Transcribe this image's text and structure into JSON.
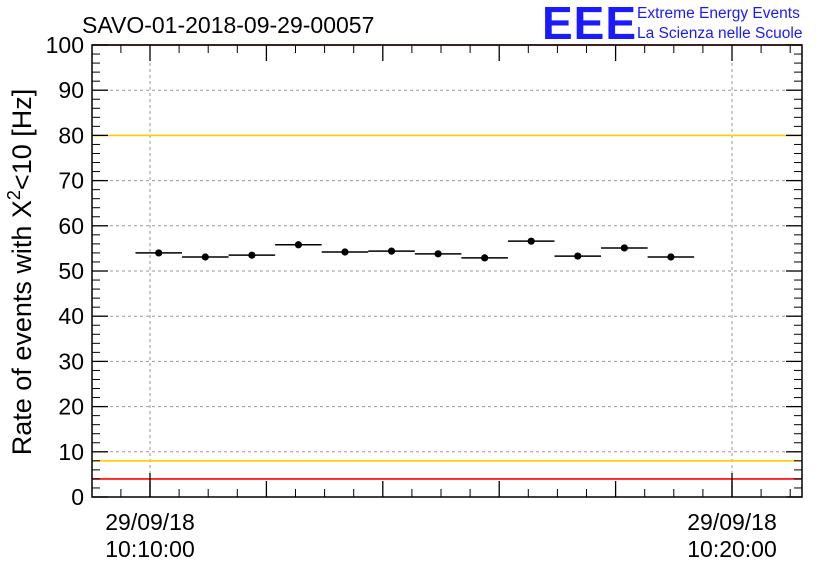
{
  "chart_data": {
    "type": "scatter",
    "title": "SAVO-01-2018-09-29-00057",
    "ylabel_prefix": "Rate of events with X",
    "ylabel_sup": "2",
    "ylabel_suffix": "<10 [Hz]",
    "xlabel": "",
    "ylim": [
      0,
      100
    ],
    "yticks": [
      0,
      10,
      20,
      30,
      40,
      50,
      60,
      70,
      80,
      90,
      100
    ],
    "x_range_seconds": [
      0,
      717
    ],
    "xtick_labels": [
      {
        "date": "29/09/18",
        "time": "10:10:00",
        "t": 0
      },
      {
        "date": "29/09/18",
        "time": "10:20:00",
        "t": 600
      }
    ],
    "bin_width_seconds": 48,
    "x_offset_seconds": -15,
    "series": [
      {
        "name": "rate",
        "color": "#000000",
        "values": [
          54.0,
          53.1,
          53.5,
          55.8,
          54.2,
          54.4,
          53.8,
          52.9,
          56.6,
          53.3,
          55.1,
          53.1
        ]
      }
    ],
    "reference_lines": [
      {
        "value": 100,
        "color": "#ff0000"
      },
      {
        "value": 80,
        "color": "#ffcc00"
      },
      {
        "value": 8,
        "color": "#ffcc00"
      },
      {
        "value": 4,
        "color": "#ff0000"
      }
    ],
    "grid": true
  },
  "logo": {
    "mark": "EEE",
    "line1": "Extreme Energy Events",
    "line2": "La Scienza nelle Scuole",
    "color": "#1a1aff"
  }
}
